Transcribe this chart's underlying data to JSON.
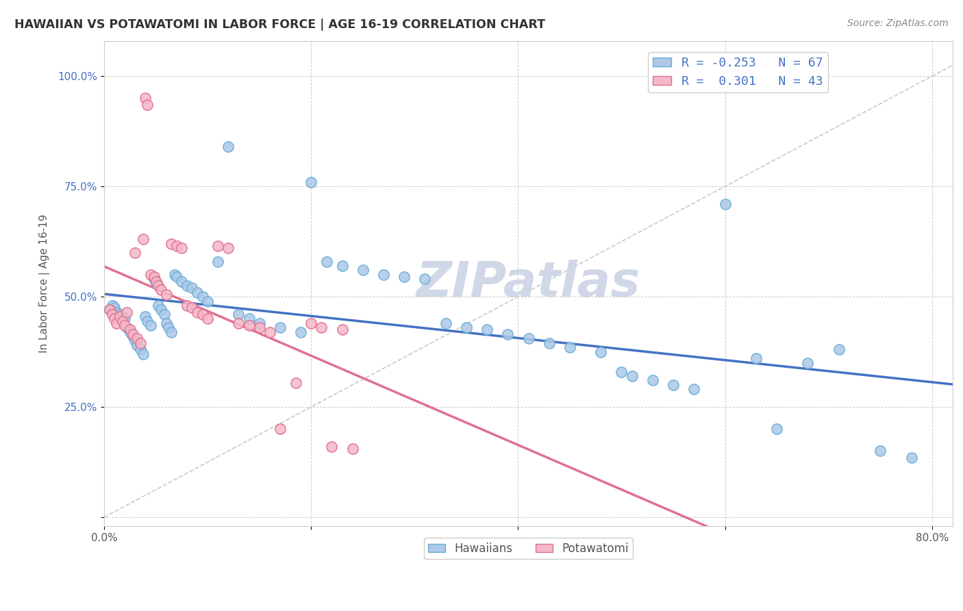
{
  "title": "HAWAIIAN VS POTAWATOMI IN LABOR FORCE | AGE 16-19 CORRELATION CHART",
  "source_text": "Source: ZipAtlas.com",
  "ylabel": "In Labor Force | Age 16-19",
  "xlim": [
    0.0,
    0.82
  ],
  "ylim": [
    -0.02,
    1.08
  ],
  "xticks": [
    0.0,
    0.2,
    0.4,
    0.6,
    0.8
  ],
  "xticklabels": [
    "0.0%",
    "",
    "",
    "",
    "80.0%"
  ],
  "yticks": [
    0.0,
    0.25,
    0.5,
    0.75,
    1.0
  ],
  "yticklabels": [
    "",
    "25.0%",
    "50.0%",
    "75.0%",
    "100.0%"
  ],
  "hawaiian_color": "#adc8e8",
  "hawaiian_edge": "#6aaed6",
  "hawaiian_line_color": "#4472c4",
  "potawatomi_color": "#f4b8c8",
  "potawatomi_edge": "#e07090",
  "potawatomi_line_color": "#e07090",
  "ref_line_color": "#bbbbbb",
  "hawaiian_R": -0.253,
  "hawaiian_N": 67,
  "potawatomi_R": 0.301,
  "potawatomi_N": 43,
  "legend_text_color": "#4472c4",
  "watermark_color": "#d0d8e8",
  "background": "#ffffff",
  "hawaiian_x": [
    0.005,
    0.008,
    0.01,
    0.012,
    0.015,
    0.018,
    0.02,
    0.022,
    0.025,
    0.028,
    0.03,
    0.032,
    0.035,
    0.038,
    0.04,
    0.042,
    0.045,
    0.048,
    0.05,
    0.052,
    0.055,
    0.058,
    0.06,
    0.062,
    0.065,
    0.068,
    0.07,
    0.075,
    0.08,
    0.085,
    0.09,
    0.095,
    0.1,
    0.11,
    0.12,
    0.13,
    0.14,
    0.15,
    0.17,
    0.19,
    0.2,
    0.215,
    0.23,
    0.25,
    0.27,
    0.29,
    0.31,
    0.33,
    0.35,
    0.37,
    0.39,
    0.41,
    0.43,
    0.45,
    0.48,
    0.5,
    0.51,
    0.53,
    0.55,
    0.57,
    0.6,
    0.63,
    0.65,
    0.68,
    0.71,
    0.75,
    0.78
  ],
  "hawaiian_y": [
    0.47,
    0.48,
    0.475,
    0.465,
    0.46,
    0.455,
    0.45,
    0.43,
    0.42,
    0.41,
    0.4,
    0.39,
    0.38,
    0.37,
    0.455,
    0.445,
    0.435,
    0.54,
    0.53,
    0.48,
    0.47,
    0.46,
    0.44,
    0.43,
    0.42,
    0.55,
    0.545,
    0.535,
    0.525,
    0.52,
    0.51,
    0.5,
    0.49,
    0.58,
    0.84,
    0.46,
    0.45,
    0.44,
    0.43,
    0.42,
    0.76,
    0.58,
    0.57,
    0.56,
    0.55,
    0.545,
    0.54,
    0.44,
    0.43,
    0.425,
    0.415,
    0.405,
    0.395,
    0.385,
    0.375,
    0.33,
    0.32,
    0.31,
    0.3,
    0.29,
    0.71,
    0.36,
    0.2,
    0.35,
    0.38,
    0.15,
    0.135
  ],
  "potawatomi_x": [
    0.005,
    0.008,
    0.01,
    0.012,
    0.015,
    0.018,
    0.02,
    0.022,
    0.025,
    0.028,
    0.03,
    0.032,
    0.035,
    0.038,
    0.04,
    0.042,
    0.045,
    0.048,
    0.05,
    0.052,
    0.055,
    0.06,
    0.065,
    0.07,
    0.075,
    0.08,
    0.085,
    0.09,
    0.095,
    0.1,
    0.11,
    0.12,
    0.13,
    0.14,
    0.15,
    0.16,
    0.17,
    0.185,
    0.2,
    0.21,
    0.22,
    0.23,
    0.24
  ],
  "potawatomi_y": [
    0.47,
    0.46,
    0.45,
    0.44,
    0.455,
    0.445,
    0.435,
    0.465,
    0.425,
    0.415,
    0.6,
    0.405,
    0.395,
    0.63,
    0.95,
    0.935,
    0.55,
    0.545,
    0.535,
    0.525,
    0.515,
    0.505,
    0.62,
    0.615,
    0.61,
    0.48,
    0.475,
    0.465,
    0.46,
    0.45,
    0.615,
    0.61,
    0.44,
    0.435,
    0.43,
    0.42,
    0.2,
    0.305,
    0.44,
    0.43,
    0.16,
    0.425,
    0.155
  ]
}
